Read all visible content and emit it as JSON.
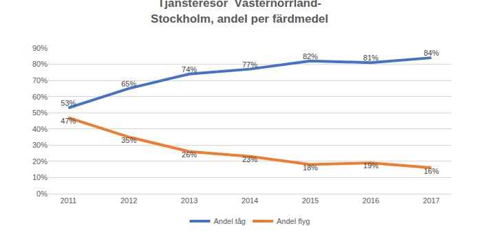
{
  "chart_data": {
    "type": "line",
    "title": "Tjänsteresor  Västernorrland- Stockholm, andel per färdmedel",
    "categories": [
      "2011",
      "2012",
      "2013",
      "2014",
      "2015",
      "2016",
      "2017"
    ],
    "series": [
      {
        "name": "Andel tåg",
        "color": "#4472c4",
        "values": [
          53,
          65,
          74,
          77,
          82,
          81,
          84
        ],
        "value_labels": [
          "53%",
          "65%",
          "74%",
          "77%",
          "82%",
          "81%",
          "84%"
        ]
      },
      {
        "name": "Andel flyg",
        "color": "#ed7d31",
        "values": [
          47,
          35,
          26,
          23,
          18,
          19,
          16
        ],
        "value_labels": [
          "47%",
          "35%",
          "26%",
          "23%",
          "18%",
          "19%",
          "16%"
        ]
      }
    ],
    "ylim": [
      0,
      90
    ],
    "yticks": [
      {
        "value": 0,
        "label": "0%"
      },
      {
        "value": 10,
        "label": "10%"
      },
      {
        "value": 20,
        "label": "20%"
      },
      {
        "value": 30,
        "label": "30%"
      },
      {
        "value": 40,
        "label": "40%"
      },
      {
        "value": 50,
        "label": "50%"
      },
      {
        "value": 60,
        "label": "60%"
      },
      {
        "value": 70,
        "label": "70%"
      },
      {
        "value": 80,
        "label": "80%"
      },
      {
        "value": 90,
        "label": "90%"
      }
    ],
    "grid": true,
    "legend": "bottom",
    "data_labels": true
  }
}
